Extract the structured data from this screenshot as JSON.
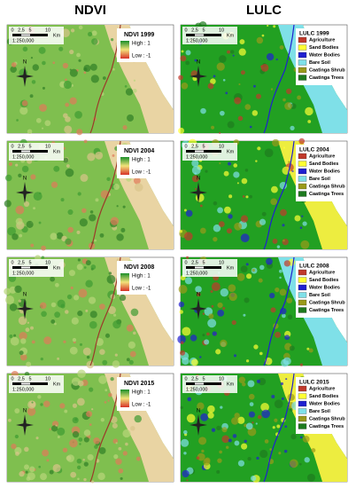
{
  "columns": [
    "NDVI",
    "LULC"
  ],
  "scale": {
    "ticks": [
      "0",
      "2,5",
      "5",
      "10"
    ],
    "unit": "Km",
    "ratio": "1:250,000"
  },
  "north_label": "N",
  "ndvi_legend": {
    "high": "High : 1",
    "low": "Low : -1"
  },
  "lulc_legend": [
    {
      "label": "Agriculture",
      "color": "#c0392b"
    },
    {
      "label": "Sand Bodies",
      "color": "#ffff33"
    },
    {
      "label": "Water Bodies",
      "color": "#1f1fd0"
    },
    {
      "label": "Bare Soil",
      "color": "#7fe0e8"
    },
    {
      "label": "Caatinga Shrub",
      "color": "#9a9a1a"
    },
    {
      "label": "Caatinga Trees",
      "color": "#1e7a1e"
    }
  ],
  "rows": [
    {
      "ndvi_title": "NDVI 1999",
      "lulc_title": "LULC 1999"
    },
    {
      "ndvi_title": "NDVI 2004",
      "lulc_title": "LULC 2004"
    },
    {
      "ndvi_title": "NDVI 2008",
      "lulc_title": "LULC 2008"
    },
    {
      "ndvi_title": "NDVI 2015",
      "lulc_title": "LULC 2015"
    }
  ]
}
